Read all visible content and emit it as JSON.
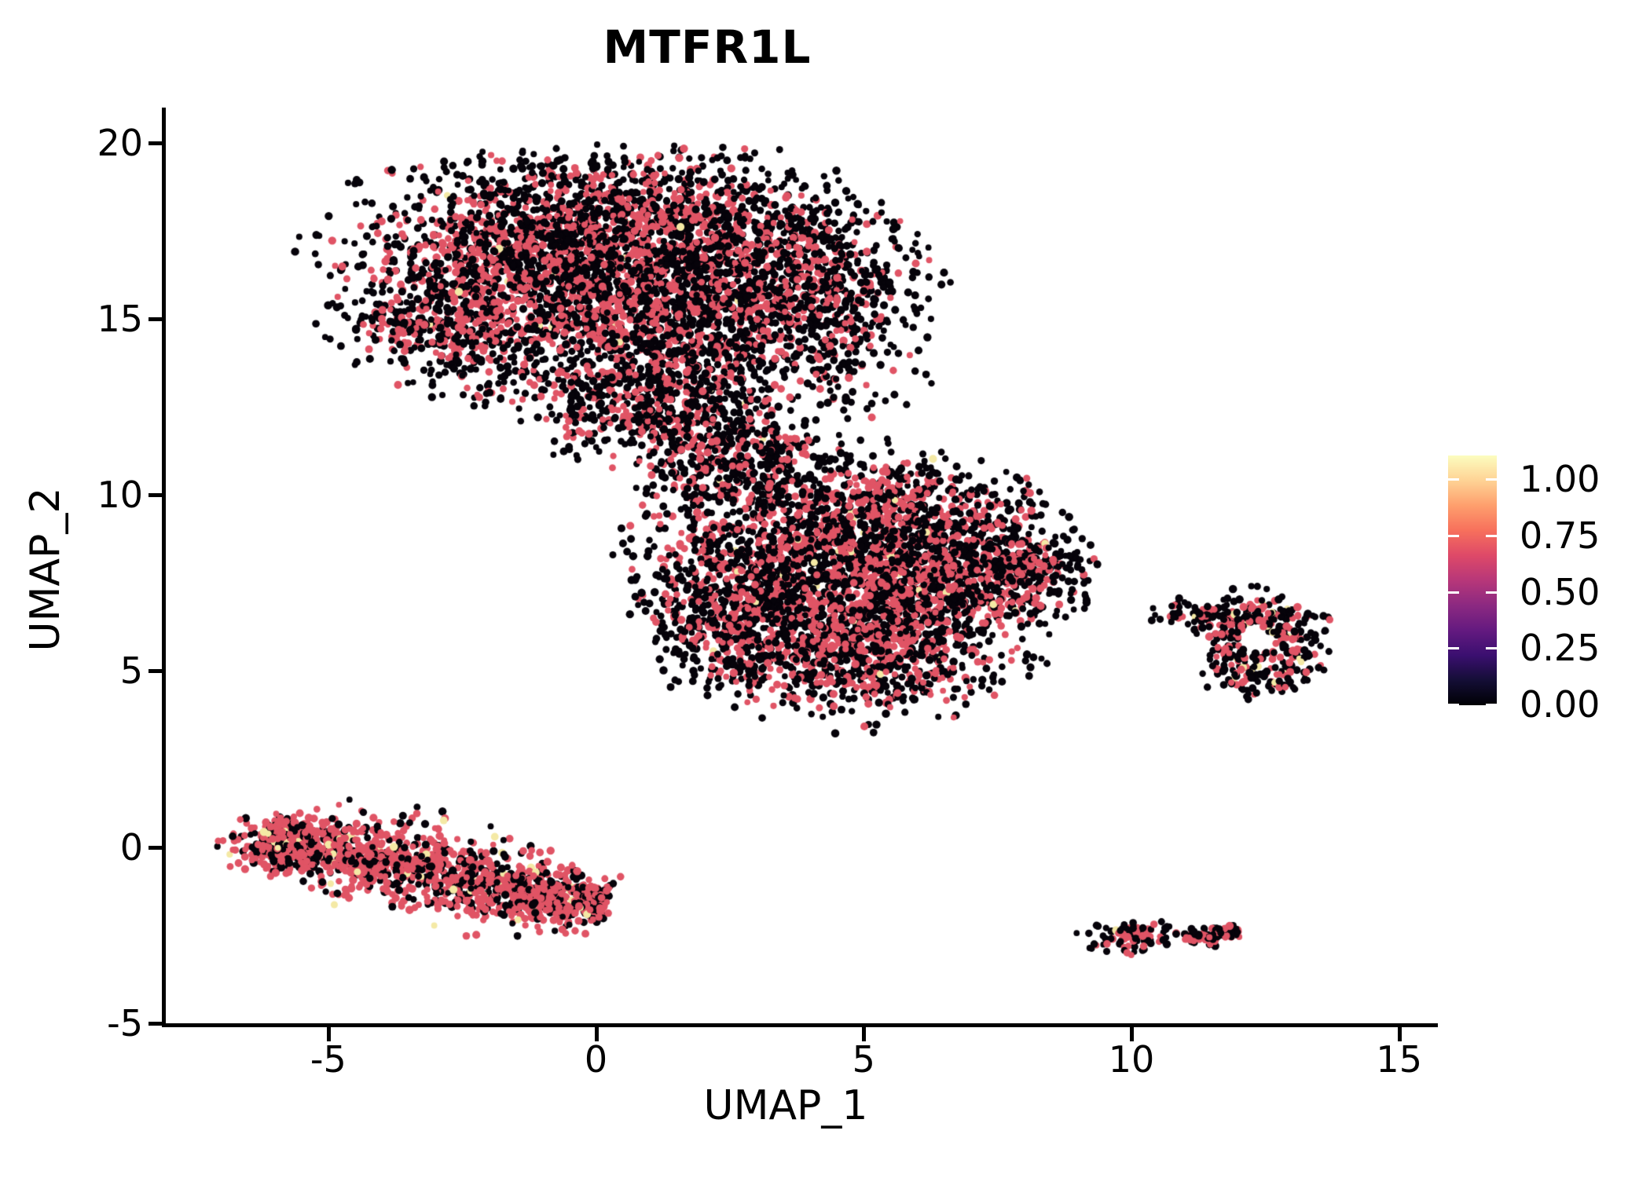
{
  "title": "MTFR1L",
  "axes": {
    "x_label": "UMAP_1",
    "y_label": "UMAP_2",
    "x_ticks": [
      {
        "value": -5,
        "label": "-5"
      },
      {
        "value": 0,
        "label": "0"
      },
      {
        "value": 5,
        "label": "5"
      },
      {
        "value": 10,
        "label": "10"
      },
      {
        "value": 15,
        "label": "15"
      }
    ],
    "y_ticks": [
      {
        "value": 20,
        "label": "20"
      },
      {
        "value": 15,
        "label": "15"
      },
      {
        "value": 10,
        "label": "10"
      },
      {
        "value": 5,
        "label": "5"
      },
      {
        "value": 0,
        "label": "0"
      },
      {
        "value": -5,
        "label": "-5"
      }
    ]
  },
  "colorbar": {
    "ticks": [
      {
        "value": 1.0,
        "label": "1.00"
      },
      {
        "value": 0.75,
        "label": "0.75"
      },
      {
        "value": 0.5,
        "label": "0.50"
      },
      {
        "value": 0.25,
        "label": "0.25"
      },
      {
        "value": 0.0,
        "label": "0.00"
      }
    ],
    "gradient_bottom_to_top": [
      "#000004",
      "#140e36",
      "#3b0f70",
      "#641a80",
      "#8c2981",
      "#b73779",
      "#de4968",
      "#f7705c",
      "#fe9f6d",
      "#fed395",
      "#fcfdbf"
    ]
  },
  "chart_data": {
    "type": "scatter",
    "title": "MTFR1L",
    "xlabel": "UMAP_1",
    "ylabel": "UMAP_2",
    "x_range": [
      -8.05,
      15.65
    ],
    "y_range": [
      -5.05,
      21.0
    ],
    "legend_position": "right",
    "value_range_shown": [
      0.0,
      1.0
    ],
    "point_colors": {
      "low": "#06030a",
      "mid": "#e05465",
      "high": "#f4e9a5"
    },
    "clusters": [
      {
        "name": "upper-main-cluster",
        "edge_black": true,
        "clip_y_max": 19.95,
        "mix": {
          "yellow": 0.004,
          "pink": 0.46
        },
        "blobs": [
          [
            -2.3,
            16.2,
            1.5,
            1.6,
            700,
            1
          ],
          [
            -0.8,
            17.3,
            1.5,
            1.3,
            700,
            1
          ],
          [
            0.8,
            17.6,
            1.5,
            1.2,
            700,
            1
          ],
          [
            2.5,
            17.0,
            1.4,
            1.3,
            650,
            0.85
          ],
          [
            4.0,
            15.9,
            1.15,
            1.15,
            560,
            0.7
          ],
          [
            0.0,
            15.2,
            1.8,
            1.2,
            700,
            1
          ],
          [
            2.0,
            14.8,
            1.3,
            1.0,
            450,
            0.9
          ],
          [
            -2.9,
            14.9,
            0.8,
            0.7,
            200,
            1
          ],
          [
            1.3,
            13.2,
            0.9,
            0.9,
            280,
            0.85
          ],
          [
            0.6,
            12.2,
            1.0,
            0.6,
            220,
            0.85
          ],
          [
            2.3,
            12.0,
            0.8,
            0.8,
            180,
            0.8
          ],
          [
            3.3,
            11.4,
            0.6,
            0.5,
            90,
            0.8
          ],
          [
            4.5,
            13.6,
            0.8,
            0.9,
            110,
            0.75
          ],
          [
            -1.5,
            13.4,
            0.8,
            0.6,
            70,
            0.9
          ],
          [
            1.9,
            10.9,
            0.7,
            0.5,
            90,
            0.8
          ]
        ]
      },
      {
        "name": "middle-main-cluster",
        "edge_black": true,
        "mix": {
          "yellow": 0.01,
          "pink": 0.47
        },
        "blobs": [
          [
            3.5,
            8.5,
            1.4,
            1.2,
            620,
            1
          ],
          [
            5.2,
            8.8,
            1.5,
            1.3,
            700,
            1
          ],
          [
            6.8,
            8.3,
            1.2,
            1.1,
            500,
            1
          ],
          [
            4.3,
            6.8,
            1.5,
            1.2,
            620,
            1
          ],
          [
            6.0,
            6.5,
            1.3,
            1.2,
            560,
            1
          ],
          [
            3.0,
            5.9,
            1.0,
            0.9,
            300,
            0.95
          ],
          [
            4.8,
            5.0,
            1.2,
            0.8,
            310,
            0.9
          ],
          [
            7.6,
            7.6,
            0.8,
            0.7,
            190,
            0.95
          ],
          [
            8.2,
            8.0,
            0.45,
            0.28,
            90,
            0.9
          ],
          [
            2.2,
            7.0,
            0.7,
            0.9,
            180,
            0.95
          ],
          [
            2.6,
            10.2,
            0.8,
            0.7,
            160,
            0.9
          ],
          [
            5.5,
            10.0,
            0.9,
            0.6,
            150,
            0.9
          ]
        ]
      },
      {
        "name": "right-ring-cluster",
        "edge_black": true,
        "mix": {
          "yellow": 0.05,
          "pink": 0.38
        },
        "hole": [
          12.35,
          5.85,
          0.34
        ],
        "blobs": [
          [
            11.35,
            6.55,
            0.5,
            0.22,
            70,
            1
          ],
          [
            12.5,
            6.4,
            0.6,
            0.45,
            150,
            1
          ],
          [
            13.0,
            5.6,
            0.35,
            0.6,
            90,
            1
          ],
          [
            12.45,
            4.95,
            0.55,
            0.35,
            95,
            1
          ],
          [
            11.95,
            5.7,
            0.28,
            0.5,
            60,
            1
          ],
          [
            11.0,
            6.7,
            0.28,
            0.18,
            14,
            0.8
          ]
        ]
      },
      {
        "name": "lower-left-band-cluster",
        "edge_black": false,
        "mix": {
          "yellow": 0.035,
          "pink": 0.62
        },
        "band": {
          "p1": [
            -6.25,
            0.3
          ],
          "p2": [
            0.2,
            -1.7
          ],
          "sigma": 0.42,
          "n": 1500
        },
        "blobs": [
          [
            -5.9,
            0.05,
            0.55,
            0.4,
            200,
            1.05
          ]
        ]
      },
      {
        "name": "bottom-small-left-cluster",
        "edge_black": true,
        "mix": {
          "yellow": 0.01,
          "pink": 0.42
        },
        "blobs": [
          [
            9.95,
            -2.55,
            0.45,
            0.24,
            95,
            1
          ]
        ]
      },
      {
        "name": "bottom-small-right-cluster",
        "edge_black": false,
        "mix": {
          "yellow": 0.01,
          "pink": 0.5
        },
        "band": {
          "p1": [
            11.0,
            -2.62
          ],
          "p2": [
            12.0,
            -2.38
          ],
          "sigma": 0.1,
          "n": 85
        },
        "blobs": []
      }
    ],
    "extra_points": [
      {
        "x": 6.72,
        "y": 3.74,
        "c": "black"
      },
      {
        "x": 6.68,
        "y": 3.68,
        "c": "pink"
      },
      {
        "x": 10.65,
        "y": -2.57,
        "c": "black"
      }
    ]
  }
}
